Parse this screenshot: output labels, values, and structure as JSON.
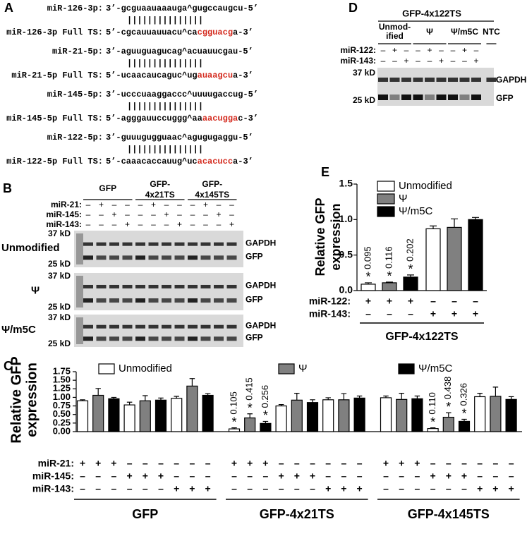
{
  "panel_a": {
    "letter": "A",
    "pairs": [
      {
        "mirna": "miR-126-3p:",
        "mirna_seq": "3’-gcguaauaaauga^gugccaugcu-5’",
        "pairing": "|||||||||||||||",
        "ts": "miR-126-3p Full TS:",
        "ts_seq": [
          "5’-cgcauuauuacu^ca",
          "cgguacg",
          "a-3’"
        ]
      },
      {
        "mirna": "miR-21-5p:",
        "mirna_seq": "3’-aguuguagucag^acuauucgau-5’",
        "pairing": "|||||||||||||||",
        "ts": "miR-21-5p Full TS:",
        "ts_seq": [
          "5’-ucaacaucaguc^ug",
          "auaagcu",
          "a-3’"
        ]
      },
      {
        "mirna": "miR-145-5p:",
        "mirna_seq": "3’-ucccuaaggaccc^uuuugaccug-5’",
        "pairing": "|||||||||||||||",
        "ts": "miR-145-5p Full TS:",
        "ts_seq": [
          "5’-agggauuccuggg^aa",
          "aacugga",
          "c-3’"
        ]
      },
      {
        "mirna": "miR-122-5p:",
        "mirna_seq": "3’-guuugugguaac^agugugaggu-5’",
        "pairing": "|||||||||||||||",
        "ts": "miR-122-5p Full TS:",
        "ts_seq": [
          "5’-caaacaccauug^uc",
          "acacucc",
          "a-3’"
        ]
      }
    ]
  },
  "panel_b": {
    "letter": "B",
    "groups": [
      [
        "GFP"
      ],
      [
        "GFP-",
        "4x21TS"
      ],
      [
        "GFP-",
        "4x145TS"
      ]
    ],
    "rows": [
      {
        "label": "miR-21:",
        "signs": [
          "–",
          "+",
          "–",
          "–",
          "–",
          "+",
          "–",
          "–",
          "–",
          "+",
          "–",
          "–"
        ]
      },
      {
        "label": "miR-145:",
        "signs": [
          "–",
          "–",
          "+",
          "–",
          "–",
          "–",
          "+",
          "–",
          "–",
          "–",
          "+",
          "–"
        ]
      },
      {
        "label": "miR-143:",
        "signs": [
          "–",
          "–",
          "–",
          "+",
          "–",
          "–",
          "–",
          "+",
          "–",
          "–",
          "–",
          "+"
        ]
      }
    ],
    "blots": [
      {
        "label": "Unmodified",
        "markers": [
          "37 kD",
          "25 kD"
        ],
        "bands": [
          "GAPDH",
          "GFP"
        ]
      },
      {
        "label": "Ψ",
        "markers": [
          "37 kD",
          "25 kD"
        ],
        "bands": [
          "GAPDH",
          "GFP"
        ]
      },
      {
        "label": "Ψ/m5C",
        "markers": [
          "37 kD",
          "25 kD"
        ],
        "bands": [
          "GAPDH",
          "GFP"
        ]
      }
    ]
  },
  "panel_d": {
    "letter": "D",
    "title": "GFP-4x122TS",
    "groups": [
      [
        "Unmod-",
        "ified"
      ],
      [
        "Ψ"
      ],
      [
        "Ψ/m5C"
      ],
      [
        "NTC"
      ]
    ],
    "rows": [
      {
        "label": "miR-122:",
        "signs": [
          "–",
          "+",
          "–",
          "–",
          "+",
          "–",
          "–",
          "+",
          "–"
        ]
      },
      {
        "label": "miR-143:",
        "signs": [
          "–",
          "–",
          "+",
          "–",
          "–",
          "+",
          "–",
          "–",
          "+"
        ]
      }
    ],
    "markers": [
      "37 kD",
      "25 kD"
    ],
    "bands": [
      "GAPDH",
      "GFP"
    ]
  },
  "chart_data": [
    {
      "type": "bar",
      "panel": "C",
      "ylabel": [
        "Relative GFP",
        "expression"
      ],
      "categories": [
        null,
        null,
        null,
        null,
        null,
        null,
        null,
        null,
        null
      ],
      "series": [
        {
          "name": "Unmodified",
          "color": "#ffffff",
          "values": [
            0.9,
            0.78,
            0.97,
            0.08,
            0.75,
            0.93,
            0.99,
            0.09,
            1.02
          ],
          "errors": [
            0.03,
            0.08,
            0.06,
            0.03,
            0.04,
            0.06,
            0.05,
            0.02,
            0.1
          ],
          "p_labels": [
            null,
            null,
            null,
            "0.105",
            null,
            null,
            null,
            "0.110",
            null
          ]
        },
        {
          "name": "Ψ",
          "color": "#808080",
          "values": [
            1.06,
            0.9,
            1.33,
            0.4,
            0.92,
            0.93,
            0.94,
            0.42,
            1.03
          ],
          "errors": [
            0.2,
            0.15,
            0.22,
            0.12,
            0.2,
            0.18,
            0.18,
            0.13,
            0.27
          ],
          "p_labels": [
            null,
            null,
            null,
            "0.415",
            null,
            null,
            null,
            "0.438",
            null
          ]
        },
        {
          "name": "Ψ/m5C",
          "color": "#000000",
          "values": [
            0.96,
            0.92,
            1.06,
            0.24,
            0.85,
            0.98,
            0.96,
            0.3,
            0.94
          ],
          "errors": [
            0.04,
            0.06,
            0.05,
            0.06,
            0.08,
            0.06,
            0.08,
            0.06,
            0.08
          ],
          "p_labels": [
            null,
            null,
            null,
            "0.256",
            null,
            null,
            null,
            "0.326",
            null
          ]
        }
      ],
      "significance_mark": "*",
      "ylim": [
        0,
        1.75
      ],
      "yticks": [
        {
          "value": 0,
          "label": "0.00"
        },
        {
          "value": 0.25,
          "label": "0.25"
        },
        {
          "value": 0.5,
          "label": "0.50"
        },
        {
          "value": 0.75,
          "label": "0.75"
        },
        {
          "value": 1,
          "label": "1.00"
        },
        {
          "value": 1.25,
          "label": "1.25"
        },
        {
          "value": 1.5,
          "label": "1.50"
        },
        {
          "value": 1.75,
          "label": "1.75"
        }
      ],
      "condition_rows": [
        {
          "label": "miR-21:",
          "signs": [
            "+",
            "+",
            "+",
            "–",
            "–",
            "–",
            "–",
            "–",
            "–",
            "+",
            "+",
            "+",
            "–",
            "–",
            "–",
            "–",
            "–",
            "–",
            "+",
            "+",
            "+",
            "–",
            "–",
            "–",
            "–",
            "–",
            "–"
          ]
        },
        {
          "label": "miR-145:",
          "signs": [
            "–",
            "–",
            "–",
            "+",
            "+",
            "+",
            "–",
            "–",
            "–",
            "–",
            "–",
            "–",
            "+",
            "+",
            "+",
            "–",
            "–",
            "–",
            "–",
            "–",
            "–",
            "+",
            "+",
            "+",
            "–",
            "–",
            "–"
          ]
        },
        {
          "label": "miR-143:",
          "signs": [
            "–",
            "–",
            "–",
            "–",
            "–",
            "–",
            "+",
            "+",
            "+",
            "–",
            "–",
            "–",
            "–",
            "–",
            "–",
            "+",
            "+",
            "+",
            "–",
            "–",
            "–",
            "–",
            "–",
            "–",
            "+",
            "+",
            "+"
          ]
        }
      ],
      "groups": [
        "GFP",
        "GFP-4x21TS",
        "GFP-4x145TS"
      ]
    },
    {
      "type": "bar",
      "panel": "E",
      "ylabel": [
        "Relative GFP",
        "expression"
      ],
      "categories": [
        null,
        null
      ],
      "series": [
        {
          "name": "Unmodified",
          "color": "#ffffff",
          "values": [
            0.09,
            0.87
          ],
          "errors": [
            0.02,
            0.04
          ],
          "p_labels": [
            "0.095",
            null
          ]
        },
        {
          "name": "Ψ",
          "color": "#808080",
          "values": [
            0.11,
            0.89
          ],
          "errors": [
            0.01,
            0.12
          ],
          "p_labels": [
            "0.116",
            null
          ]
        },
        {
          "name": "Ψ/m5C",
          "color": "#000000",
          "values": [
            0.19,
            1.0
          ],
          "errors": [
            0.03,
            0.03
          ],
          "p_labels": [
            "0.202",
            null
          ]
        }
      ],
      "significance_mark": "*",
      "ylim": [
        0,
        1.5
      ],
      "yticks": [
        {
          "value": 0,
          "label": "0.0"
        },
        {
          "value": 0.5,
          "label": "0.5"
        },
        {
          "value": 1,
          "label": "1.0"
        },
        {
          "value": 1.5,
          "label": "1.5"
        }
      ],
      "condition_rows": [
        {
          "label": "miR-122:",
          "signs": [
            "+",
            "+",
            "+",
            "–",
            "–",
            "–"
          ]
        },
        {
          "label": "miR-143:",
          "signs": [
            "–",
            "–",
            "–",
            "+",
            "+",
            "+"
          ]
        }
      ],
      "groups": [
        "GFP-4x122TS"
      ]
    }
  ]
}
